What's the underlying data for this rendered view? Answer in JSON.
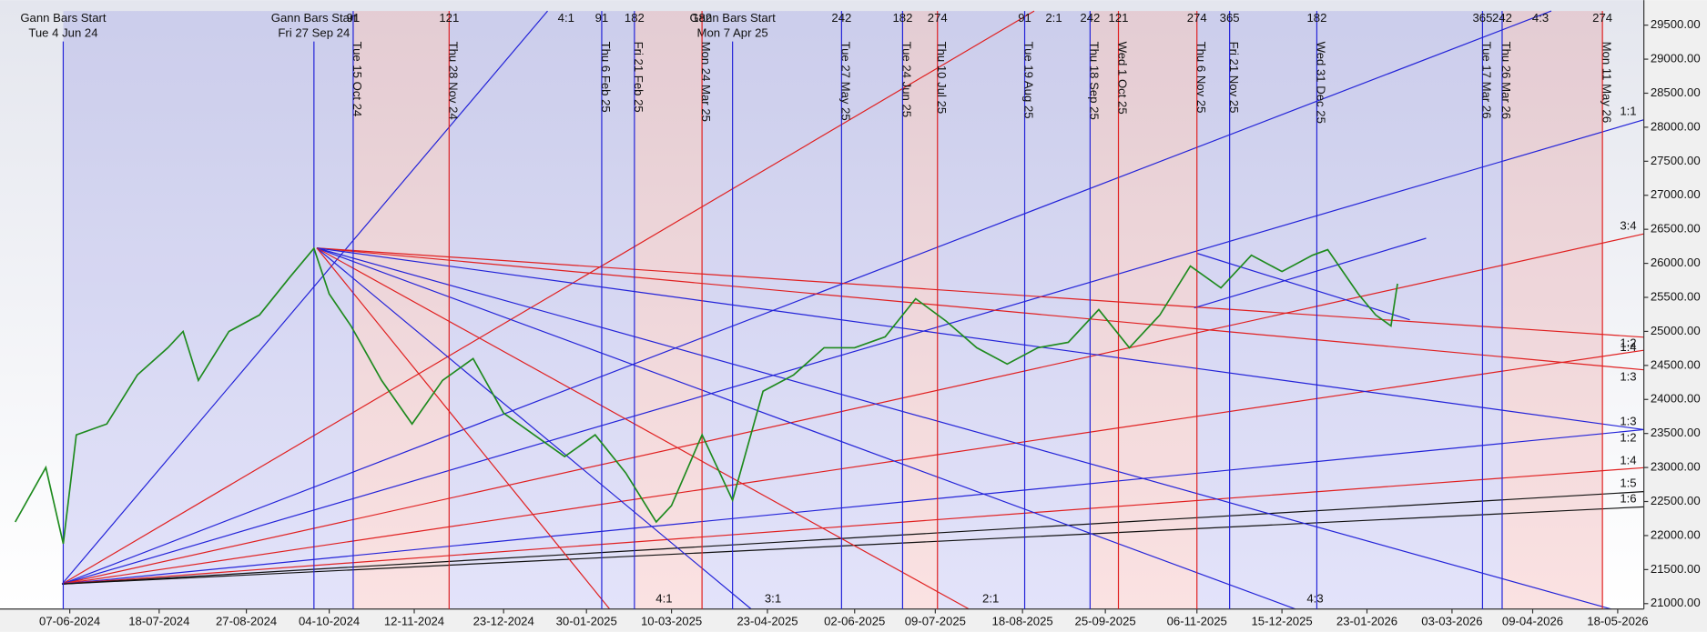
{
  "chart_data": {
    "type": "line",
    "color": "#1e8a1e",
    "xlim": [
      "2024-05-06",
      "2026-05-30"
    ],
    "ylim": [
      20920,
      29708
    ],
    "yticks": [
      {
        "value": 21000,
        "label": "21000.00"
      },
      {
        "value": 21500,
        "label": "21500.00"
      },
      {
        "value": 22000,
        "label": "22000.00"
      },
      {
        "value": 22500,
        "label": "22500.00"
      },
      {
        "value": 23000,
        "label": "23000.00"
      },
      {
        "value": 23500,
        "label": "23500.00"
      },
      {
        "value": 24000,
        "label": "24000.00"
      },
      {
        "value": 24500,
        "label": "24500.00"
      },
      {
        "value": 25000,
        "label": "25000.00"
      },
      {
        "value": 25500,
        "label": "25500.00"
      },
      {
        "value": 26000,
        "label": "26000.00"
      },
      {
        "value": 26500,
        "label": "26500.00"
      },
      {
        "value": 27000,
        "label": "27000.00"
      },
      {
        "value": 27500,
        "label": "27500.00"
      },
      {
        "value": 28000,
        "label": "28000.00"
      },
      {
        "value": 28500,
        "label": "28500.00"
      },
      {
        "value": 29000,
        "label": "29000.00"
      },
      {
        "value": 29500,
        "label": "29500.00"
      }
    ],
    "xticks": [
      {
        "value": "2024-06-07",
        "label": "07-06-2024"
      },
      {
        "value": "2024-07-18",
        "label": "18-07-2024"
      },
      {
        "value": "2024-08-27",
        "label": "27-08-2024"
      },
      {
        "value": "2024-10-04",
        "label": "04-10-2024"
      },
      {
        "value": "2024-11-12",
        "label": "12-11-2024"
      },
      {
        "value": "2024-12-23",
        "label": "23-12-2024"
      },
      {
        "value": "2025-01-30",
        "label": "30-01-2025"
      },
      {
        "value": "2025-03-10",
        "label": "10-03-2025"
      },
      {
        "value": "2025-04-23",
        "label": "23-04-2025"
      },
      {
        "value": "2025-06-02",
        "label": "02-06-2025"
      },
      {
        "value": "2025-07-09",
        "label": "09-07-2025"
      },
      {
        "value": "2025-08-18",
        "label": "18-08-2025"
      },
      {
        "value": "2025-09-25",
        "label": "25-09-2025"
      },
      {
        "value": "2025-11-06",
        "label": "06-11-2025"
      },
      {
        "value": "2025-12-15",
        "label": "15-12-2025"
      },
      {
        "value": "2026-01-23",
        "label": "23-01-2026"
      },
      {
        "value": "2026-03-03",
        "label": "03-03-2026"
      },
      {
        "value": "2026-04-09",
        "label": "09-04-2026"
      },
      {
        "value": "2026-05-18",
        "label": "18-05-2026"
      }
    ],
    "x": [
      "2024-05-13",
      "2024-05-27",
      "2024-06-04",
      "2024-06-10",
      "2024-06-24",
      "2024-07-08",
      "2024-07-22",
      "2024-07-29",
      "2024-08-05",
      "2024-08-19",
      "2024-09-02",
      "2024-09-16",
      "2024-09-27",
      "2024-10-04",
      "2024-10-14",
      "2024-10-28",
      "2024-11-11",
      "2024-11-25",
      "2024-12-09",
      "2024-12-23",
      "2025-01-06",
      "2025-01-20",
      "2025-02-03",
      "2025-02-17",
      "2025-03-03",
      "2025-03-10",
      "2025-03-24",
      "2025-04-07",
      "2025-04-21",
      "2025-05-05",
      "2025-05-19",
      "2025-06-02",
      "2025-06-16",
      "2025-06-30",
      "2025-07-14",
      "2025-07-28",
      "2025-08-11",
      "2025-08-25",
      "2025-09-08",
      "2025-09-22",
      "2025-10-06",
      "2025-10-20",
      "2025-11-03",
      "2025-11-17",
      "2025-12-01",
      "2025-12-15",
      "2025-12-29",
      "2026-01-05",
      "2026-01-19",
      "2026-01-27",
      "2026-02-03",
      "2026-02-06"
    ],
    "values": [
      22200,
      23000,
      21880,
      23480,
      23640,
      24360,
      24760,
      25000,
      24280,
      25000,
      25240,
      25800,
      26220,
      25550,
      25080,
      24280,
      23640,
      24280,
      24600,
      23800,
      23480,
      23160,
      23480,
      22920,
      22200,
      22440,
      23480,
      22520,
      24120,
      24360,
      24760,
      24760,
      24920,
      25480,
      25150,
      24760,
      24520,
      24760,
      24840,
      25320,
      24760,
      25240,
      25960,
      25640,
      26120,
      25880,
      26120,
      26200,
      25550,
      25240,
      25080,
      25700
    ],
    "gann_starts": [
      {
        "date": "2024-06-04",
        "label": "Gann Bars Start",
        "date_label": "Tue 4 Jun 24"
      },
      {
        "date": "2024-09-27",
        "label": "Gann Bars Start",
        "date_label": "Fri 27 Sep 24"
      },
      {
        "date": "2025-04-07",
        "label": "Gann Bars Start",
        "date_label": "Mon 7 Apr 25"
      }
    ],
    "vlines": [
      {
        "date": "2024-10-15",
        "label": "Tue 15 Oct 24",
        "color": "#2323d8",
        "count": 91
      },
      {
        "date": "2024-11-28",
        "label": "Thu 28 Nov 24",
        "color": "#e02020",
        "count": 121
      },
      {
        "date": "2025-02-06",
        "label": "Thu 6 Feb 25",
        "color": "#2323d8",
        "count": 91
      },
      {
        "date": "2025-02-21",
        "label": "Fri 21 Feb 25",
        "color": "#2323d8",
        "count": 182
      },
      {
        "date": "2025-03-24",
        "label": "Mon 24 Mar 25",
        "color": "#e02020",
        "count": 182
      },
      {
        "date": "2025-05-27",
        "label": "Tue 27 May 25",
        "color": "#2323d8",
        "count": 242
      },
      {
        "date": "2025-06-24",
        "label": "Tue 24 Jun 25",
        "color": "#2323d8",
        "count": 182
      },
      {
        "date": "2025-07-10",
        "label": "Thu 10 Jul 25",
        "color": "#e02020",
        "count": 274
      },
      {
        "date": "2025-08-19",
        "label": "Tue 19 Aug 25",
        "color": "#2323d8",
        "count": 91
      },
      {
        "date": "2025-09-18",
        "label": "Thu 18 Sep 25",
        "color": "#2323d8",
        "count": 242
      },
      {
        "date": "2025-10-01",
        "label": "Wed 1 Oct 25",
        "color": "#e02020",
        "count": 121
      },
      {
        "date": "2025-11-06",
        "label": "Thu 6 Nov 25",
        "color": "#e02020",
        "count": 274
      },
      {
        "date": "2025-11-21",
        "label": "Fri 21 Nov 25",
        "color": "#2323d8",
        "count": 365
      },
      {
        "date": "2025-12-31",
        "label": "Wed 31 Dec 25",
        "color": "#2323d8",
        "count": 182
      },
      {
        "date": "2026-03-17",
        "label": "Tue 17 Mar 26",
        "color": "#2323d8",
        "count": 365
      },
      {
        "date": "2026-03-26",
        "label": "Thu 26 Mar 26",
        "color": "#2323d8",
        "count": 242
      },
      {
        "date": "2026-05-11",
        "label": "Mon 11 May 26",
        "color": "#e02020",
        "count": 274
      }
    ],
    "fan_labels": {
      "top": [
        "4:1",
        "2:1",
        "4:3"
      ],
      "bottom": [
        "4:1",
        "3:1",
        "2:1",
        "4:3"
      ],
      "right": [
        "1:1",
        "3:4",
        "1:2",
        "1:4",
        "1:3",
        "1:3",
        "1:2",
        "1:4",
        "1:5",
        "1:6"
      ]
    }
  }
}
